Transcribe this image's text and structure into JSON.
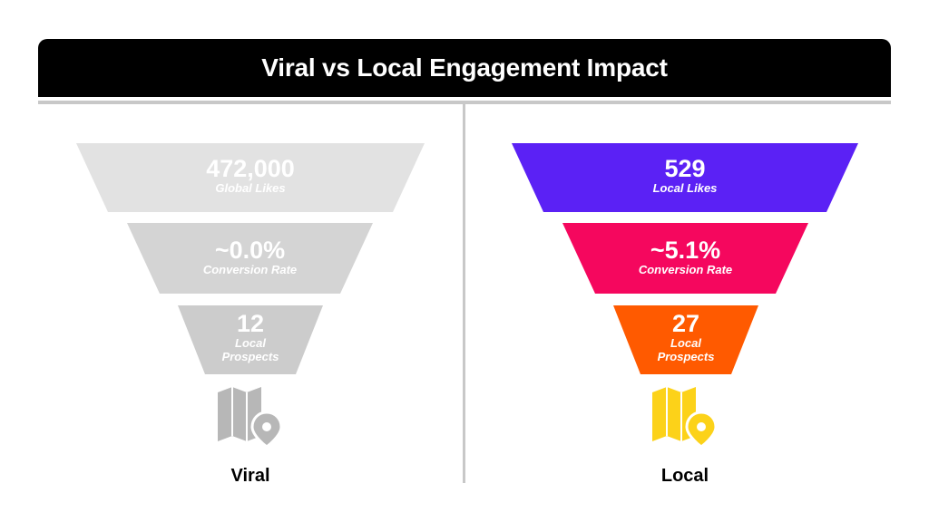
{
  "title": "Viral vs Local Engagement Impact",
  "colors": {
    "viral_top": "#e2e2e2",
    "viral_mid": "#d4d4d4",
    "viral_bottom": "#cccccc",
    "viral_icon": "#b7b7b7",
    "local_top": "#5b21f5",
    "local_mid": "#f5075e",
    "local_bottom": "#ff5a00",
    "local_icon": "#fcd219"
  },
  "viral": {
    "label": "Viral",
    "icon": "map-pin-icon",
    "stages": [
      {
        "value": "472,000",
        "label": "Global Likes"
      },
      {
        "value": "~0.0%",
        "label": "Conversion Rate"
      },
      {
        "value": "12",
        "label": "Local Prospects"
      }
    ]
  },
  "local": {
    "label": "Local",
    "icon": "map-pin-icon",
    "stages": [
      {
        "value": "529",
        "label": "Local Likes"
      },
      {
        "value": "~5.1%",
        "label": "Conversion Rate"
      },
      {
        "value": "27",
        "label": "Local Prospects"
      }
    ]
  }
}
